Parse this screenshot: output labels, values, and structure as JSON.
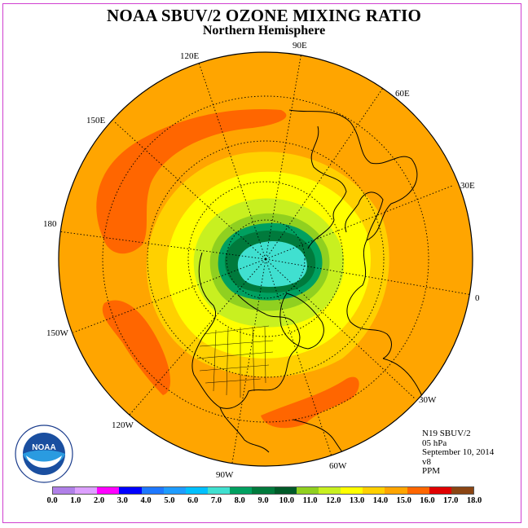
{
  "header": {
    "title": "NOAA SBUV/2 OZONE MIXING RATIO",
    "subtitle": "Northern Hemisphere"
  },
  "map": {
    "projection": "north polar stereographic",
    "longitude_labels": [
      {
        "label": "90E",
        "lon": 90
      },
      {
        "label": "120E",
        "lon": 120
      },
      {
        "label": "60E",
        "lon": 60
      },
      {
        "label": "150E",
        "lon": 150
      },
      {
        "label": "30E",
        "lon": 30
      },
      {
        "label": "180",
        "lon": 180
      },
      {
        "label": "0",
        "lon": 0
      },
      {
        "label": "150W",
        "lon": -150
      },
      {
        "label": "30W",
        "lon": -30
      },
      {
        "label": "120W",
        "lon": -120
      },
      {
        "label": "60W",
        "lon": -60
      },
      {
        "label": "90W",
        "lon": -90
      }
    ],
    "colors": {
      "ocean_background": "#ffa500",
      "max_band": "#ff6600",
      "min_center": "#40e0d0"
    }
  },
  "info": {
    "lines": [
      "N19 SBUV/2",
      "05 hPa",
      "September 10, 2014",
      "v8",
      "PPM"
    ]
  },
  "logo": {
    "name": "NOAA",
    "ring_text": "NATIONAL OCEANIC AND ATMOSPHERIC ADMINISTRATION · U.S. DEPARTMENT OF COMMERCE"
  },
  "colorbar": {
    "colors": [
      "#b080e8",
      "#dda0ff",
      "#ff00ff",
      "#0000ff",
      "#1e78ff",
      "#1e9cff",
      "#00c0ff",
      "#40e0d0",
      "#00a060",
      "#007a3c",
      "#005a28",
      "#90d020",
      "#c8f020",
      "#ffff00",
      "#ffd000",
      "#ffa500",
      "#ff6600",
      "#e00000",
      "#8b4513"
    ],
    "ticks": [
      "0.0",
      "1.0",
      "2.0",
      "3.0",
      "4.0",
      "5.0",
      "6.0",
      "7.0",
      "8.0",
      "9.0",
      "10.0",
      "11.0",
      "12.0",
      "13.0",
      "14.0",
      "15.0",
      "16.0",
      "17.0",
      "18.0"
    ]
  }
}
